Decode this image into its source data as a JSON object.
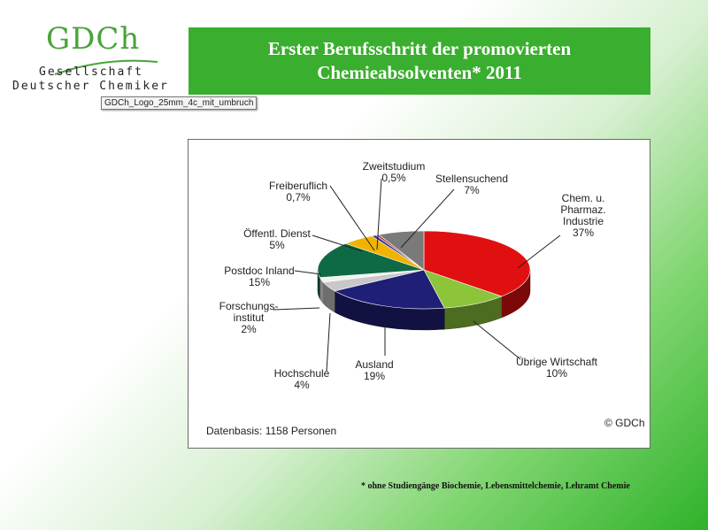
{
  "logo": {
    "mark": "GDCh",
    "org_line1": "Gesellschaft",
    "org_line2": "Deutscher Chemiker",
    "caption": "GDCh_Logo_25mm_4c_mit_umbruch"
  },
  "header": {
    "title_line1": "Erster Berufsschritt der promovierten",
    "title_line2": "Chemieabsolventen* 2011"
  },
  "chart_data": {
    "type": "pie",
    "title": "",
    "series": [
      {
        "name": "Chem. u. Pharmaz. Industrie",
        "label_lines": [
          "Chem. u.",
          "Pharmaz.",
          "Industrie",
          "37%"
        ],
        "value": 37,
        "color": "#e01010"
      },
      {
        "name": "Übrige Wirtschaft",
        "label_lines": [
          "Übrige Wirtschaft",
          "10%"
        ],
        "value": 10,
        "color": "#8cc43a"
      },
      {
        "name": "Ausland",
        "label_lines": [
          "Ausland",
          "19%"
        ],
        "value": 19,
        "color": "#1f1f78"
      },
      {
        "name": "Hochschule",
        "label_lines": [
          "Hochschule",
          "4%"
        ],
        "value": 4,
        "color": "#c8c8c8"
      },
      {
        "name": "Forschungsinstitut",
        "label_lines": [
          "Forschungs-",
          "institut",
          "2%"
        ],
        "value": 2,
        "color": "#f2f2f2"
      },
      {
        "name": "Postdoc Inland",
        "label_lines": [
          "Postdoc Inland",
          "15%"
        ],
        "value": 15,
        "color": "#0e6a45"
      },
      {
        "name": "Öffentl. Dienst",
        "label_lines": [
          "Öffentl. Dienst",
          "5%"
        ],
        "value": 5,
        "color": "#f0b400"
      },
      {
        "name": "Freiberuflich",
        "label_lines": [
          "Freiberuflich",
          "0,7%"
        ],
        "value": 0.7,
        "color": "#3a3a9a"
      },
      {
        "name": "Zweitstudium",
        "label_lines": [
          "Zweitstudium",
          "0,5%"
        ],
        "value": 0.5,
        "color": "#b04040"
      },
      {
        "name": "Stellensuchend",
        "label_lines": [
          "Stellensuchend",
          "7%"
        ],
        "value": 7,
        "color": "#7a7a7a"
      }
    ],
    "basis": "Datenbasis: 1158 Personen",
    "copyright": "© GDCh"
  },
  "footnote": "* ohne Studiengänge Biochemie, Lebensmittelchemie, Lehramt Chemie"
}
